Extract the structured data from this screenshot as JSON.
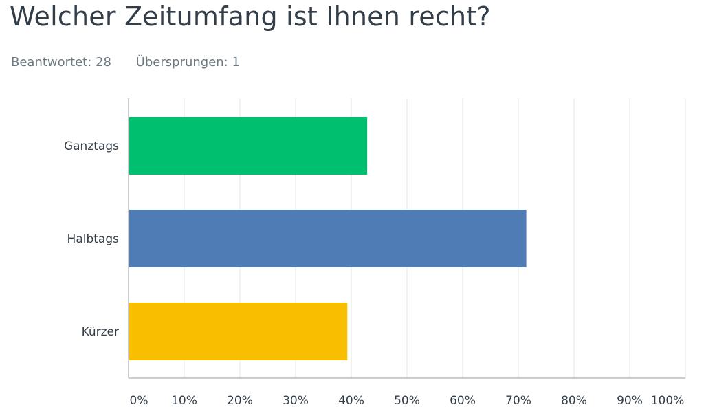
{
  "question": {
    "title": "Welcher Zeitumfang ist Ihnen recht?",
    "answered_label": "Beantwortet: 28",
    "skipped_label": "Übersprungen: 1"
  },
  "chart_data": {
    "type": "bar",
    "orientation": "horizontal",
    "categories": [
      "Ganztags",
      "Halbtags",
      "Kürzer"
    ],
    "values": [
      42.86,
      71.43,
      39.29
    ],
    "colors": [
      "#00bf6f",
      "#507cb6",
      "#f9be00"
    ],
    "xlim": [
      0,
      100
    ],
    "ticks": [
      "0%",
      "10%",
      "20%",
      "30%",
      "40%",
      "50%",
      "60%",
      "70%",
      "80%",
      "90%",
      "100%"
    ],
    "grid": true
  }
}
